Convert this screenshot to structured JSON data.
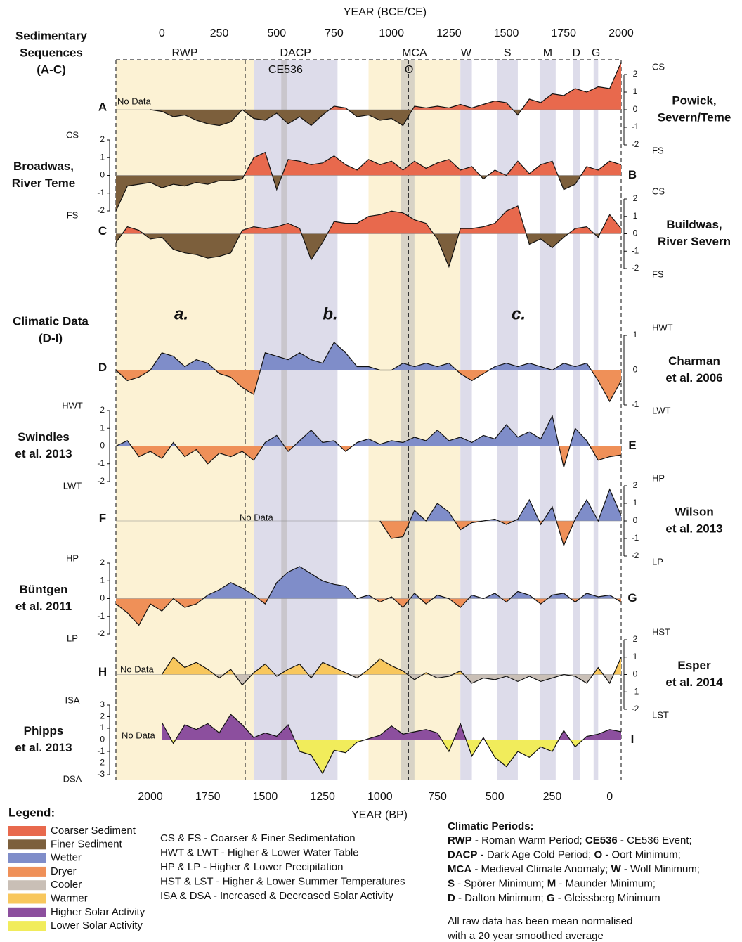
{
  "chart_data": {
    "type": "area",
    "xlabel_top": "YEAR (BCE/CE)",
    "xlim": [
      -200,
      2000
    ],
    "xticks": [
      0,
      250,
      500,
      750,
      1000,
      1250,
      1500,
      1750,
      2000
    ],
    "xlabel_bottom": "YEAR (BP)",
    "x2lim": [
      2150,
      -50
    ],
    "x2ticks": [
      2000,
      1750,
      1500,
      1250,
      1000,
      750,
      500,
      250,
      0
    ],
    "x": [
      -200,
      -150,
      -100,
      -50,
      0,
      50,
      100,
      150,
      200,
      250,
      300,
      350,
      400,
      450,
      500,
      550,
      600,
      650,
      700,
      750,
      800,
      850,
      900,
      950,
      1000,
      1050,
      1100,
      1150,
      1200,
      1250,
      1300,
      1350,
      1400,
      1450,
      1500,
      1550,
      1600,
      1650,
      1700,
      1750,
      1800,
      1850,
      1900,
      1950,
      2000
    ],
    "periods": [
      {
        "label": "RWP",
        "start": -200,
        "end": 400,
        "color": "#fcf2d4"
      },
      {
        "label": "DACP",
        "start": 400,
        "end": 765,
        "color": "#dddcea"
      },
      {
        "label": "CE536",
        "start": 520,
        "end": 545,
        "color": "#c9c6cc"
      },
      {
        "label": "MCA",
        "start": 900,
        "end": 1300,
        "color": "#fcf2d4"
      },
      {
        "label": "O",
        "start": 1040,
        "end": 1100,
        "color": "#d8d3c6"
      },
      {
        "label": "W",
        "start": 1300,
        "end": 1350,
        "color": "#dddcea"
      },
      {
        "label": "S",
        "start": 1460,
        "end": 1550,
        "color": "#dddcea"
      },
      {
        "label": "M",
        "start": 1645,
        "end": 1715,
        "color": "#dddcea"
      },
      {
        "label": "D",
        "start": 1790,
        "end": 1820,
        "color": "#dddcea"
      },
      {
        "label": "G",
        "start": 1880,
        "end": 1900,
        "color": "#dddcea"
      }
    ],
    "sections": [
      [
        "Sedimentary",
        "Sequences",
        "(A-C)"
      ],
      [
        "Climatic Data",
        "(D-I)"
      ]
    ],
    "phase_labels": [
      "a.",
      "b.",
      "c."
    ],
    "panels": [
      {
        "letter": "A",
        "name": [
          "Powick,",
          "Severn/Teme"
        ],
        "axis": "right",
        "label_top": "CS",
        "label_bottom": "FS",
        "no_data": "No Data",
        "ylim": [
          -2,
          2
        ],
        "yticks": [
          -2,
          -1,
          0,
          1,
          2
        ],
        "pos_color": "#e8694d",
        "neg_color": "#7c5f3c",
        "values": [
          null,
          null,
          null,
          0,
          -0.1,
          -0.4,
          -0.3,
          -0.6,
          -0.8,
          -0.9,
          -0.7,
          0,
          -0.5,
          -0.6,
          -0.2,
          -0.8,
          -0.4,
          -0.9,
          -0.3,
          0.2,
          0.1,
          -0.4,
          -0.3,
          -0.6,
          -0.5,
          -0.9,
          0.2,
          0.1,
          0.2,
          0.1,
          0.3,
          0.1,
          0.3,
          0.5,
          0.4,
          -0.3,
          0.6,
          0.4,
          0.9,
          0.8,
          1.2,
          1.0,
          1.3,
          1.2,
          2.7
        ]
      },
      {
        "letter": "B",
        "name": [
          "Broadwas,",
          "River Teme"
        ],
        "axis": "left",
        "label_top": "CS",
        "label_bottom": "FS",
        "ylim": [
          -2,
          2
        ],
        "yticks": [
          -2,
          -1,
          0,
          1,
          2
        ],
        "pos_color": "#e8694d",
        "neg_color": "#7c5f3c",
        "values": [
          -2.0,
          -0.6,
          -0.5,
          -0.4,
          -0.7,
          -0.5,
          -0.6,
          -0.4,
          -0.5,
          -0.3,
          -0.3,
          -0.2,
          1.0,
          1.3,
          -0.8,
          0.9,
          0.8,
          0.6,
          0.7,
          1.1,
          0.6,
          0.3,
          0.9,
          0.6,
          0.8,
          0.3,
          0.8,
          0.4,
          0.7,
          0.9,
          0.3,
          0.5,
          -0.2,
          0.3,
          0.0,
          0.8,
          0.1,
          0.6,
          0.8,
          -0.8,
          -0.5,
          0.5,
          0.3,
          0.8,
          0.6
        ]
      },
      {
        "letter": "C",
        "name": [
          "Buildwas,",
          "River Severn"
        ],
        "axis": "right",
        "label_top": "CS",
        "label_bottom": "FS",
        "ylim": [
          -2,
          2
        ],
        "yticks": [
          -2,
          -1,
          0,
          1,
          2
        ],
        "pos_color": "#e8694d",
        "neg_color": "#7c5f3c",
        "values": [
          -0.5,
          0.4,
          0.2,
          -0.3,
          -0.2,
          -0.9,
          -1.1,
          -1.2,
          -1.4,
          -1.3,
          -1.1,
          0.2,
          0.4,
          0.3,
          0.4,
          0.6,
          0.3,
          -1.5,
          -0.5,
          0.7,
          0.6,
          0.6,
          1.0,
          1.1,
          1.3,
          1.2,
          0.8,
          0.6,
          -0.3,
          -1.9,
          0.3,
          0.3,
          0.4,
          0.6,
          1.3,
          1.6,
          -0.6,
          -0.3,
          -0.8,
          -0.2,
          0.3,
          0.4,
          -0.2,
          1.1,
          0.3
        ]
      },
      {
        "letter": "D",
        "name": [
          "Charman",
          "et al. 2006"
        ],
        "axis": "right",
        "label_top": "HWT",
        "label_bottom": "LWT",
        "ylim": [
          -1,
          1
        ],
        "yticks": [
          -1,
          0,
          1
        ],
        "pos_color": "#7f8dc9",
        "neg_color": "#ef9058",
        "values": [
          0.0,
          -0.3,
          -0.2,
          0.0,
          0.5,
          0.4,
          0.1,
          0.3,
          0.2,
          -0.1,
          -0.2,
          -0.5,
          -0.7,
          0.5,
          0.4,
          0.3,
          0.5,
          0.3,
          0.2,
          0.8,
          0.5,
          0.1,
          0.1,
          0.0,
          0.0,
          0.2,
          0.1,
          0.2,
          0.1,
          0.2,
          -0.1,
          -0.3,
          -0.1,
          0.1,
          0.2,
          0.1,
          0.2,
          0.1,
          0.0,
          0.2,
          0.1,
          0.2,
          -0.3,
          -0.9,
          -0.3
        ]
      },
      {
        "letter": "E",
        "name": [
          "Swindles",
          "et al. 2013"
        ],
        "axis": "left",
        "label_top": "HWT",
        "label_bottom": "LWT",
        "ylim": [
          -2,
          2
        ],
        "yticks": [
          -2,
          -1,
          0,
          1,
          2
        ],
        "pos_color": "#7f8dc9",
        "neg_color": "#ef9058",
        "values": [
          0,
          0.3,
          -0.6,
          -0.3,
          -0.7,
          0.2,
          -0.6,
          -0.2,
          -1.0,
          -0.4,
          -0.6,
          -0.3,
          -0.8,
          0.2,
          0.6,
          -0.3,
          0.3,
          0.9,
          0.2,
          0.3,
          -0.3,
          0.2,
          0.4,
          0.1,
          0.3,
          0.2,
          0.5,
          0.3,
          0.9,
          0.3,
          0.5,
          0.2,
          0.6,
          0.4,
          1.2,
          0.5,
          0.8,
          0.4,
          1.7,
          -1.2,
          1.0,
          0.3,
          -0.8,
          -0.6,
          -0.5
        ]
      },
      {
        "letter": "F",
        "name": [
          "Wilson",
          "et al. 2013"
        ],
        "axis": "right",
        "label_top": "HP",
        "label_bottom": "LP",
        "no_data": "No Data",
        "ylim": [
          -2,
          2
        ],
        "yticks": [
          -2,
          -1,
          0,
          1,
          2
        ],
        "pos_color": "#7f8dc9",
        "neg_color": "#ef9058",
        "values": [
          null,
          null,
          null,
          null,
          null,
          null,
          null,
          null,
          null,
          null,
          null,
          null,
          null,
          null,
          null,
          null,
          null,
          null,
          null,
          null,
          null,
          null,
          null,
          0.0,
          -1.0,
          -0.9,
          0.6,
          0.0,
          1.0,
          0.5,
          -0.5,
          -0.1,
          0.0,
          0.1,
          -0.2,
          0.1,
          1.2,
          -0.2,
          0.8,
          -1.4,
          0.1,
          1.2,
          0.0,
          1.8,
          0.3
        ]
      },
      {
        "letter": "G",
        "name": [
          "Büntgen",
          "et al. 2011"
        ],
        "axis": "left",
        "label_top": "HP",
        "label_bottom": "LP",
        "ylim": [
          -2,
          2
        ],
        "yticks": [
          -2,
          -1,
          0,
          1,
          2
        ],
        "pos_color": "#7f8dc9",
        "neg_color": "#ef9058",
        "values": [
          -0.3,
          -0.8,
          -1.5,
          -0.3,
          -0.7,
          0.0,
          -0.5,
          -0.3,
          0.2,
          0.5,
          0.9,
          0.6,
          0.2,
          -0.3,
          0.9,
          1.5,
          1.8,
          1.4,
          1.0,
          0.8,
          0.7,
          0.0,
          0.2,
          -0.2,
          0.1,
          -0.5,
          0.3,
          -0.3,
          0.2,
          0.0,
          -0.5,
          0.2,
          0.0,
          0.3,
          -0.2,
          0.4,
          0.2,
          -0.3,
          0.2,
          0.3,
          -0.2,
          0.3,
          0.1,
          0.2,
          -0.2
        ]
      },
      {
        "letter": "H",
        "name": [
          "Esper",
          "et al. 2014"
        ],
        "axis": "right",
        "label_top": "HST",
        "label_bottom": "LST",
        "no_data": "No Data",
        "ylim": [
          -2,
          2
        ],
        "yticks": [
          -2,
          -1,
          0,
          1,
          2
        ],
        "pos_color": "#f8c75d",
        "neg_color": "#c9bfb6",
        "values": [
          null,
          null,
          null,
          null,
          0.0,
          1.0,
          0.4,
          0.7,
          0.3,
          -0.2,
          0.3,
          -0.6,
          0.1,
          0.6,
          -0.1,
          0.3,
          0.6,
          -0.2,
          0.7,
          0.4,
          0.1,
          -0.2,
          0.3,
          0.9,
          0.5,
          0.2,
          -0.3,
          0.1,
          -0.2,
          -0.1,
          0.2,
          -0.5,
          -0.2,
          -0.3,
          -0.1,
          -0.4,
          -0.1,
          -0.4,
          -0.2,
          0.0,
          -0.1,
          -0.5,
          0.4,
          -0.5,
          1.0
        ]
      },
      {
        "letter": "I",
        "name": [
          "Phipps",
          "et al. 2013"
        ],
        "axis": "left",
        "label_top": "ISA",
        "label_bottom": "DSA",
        "no_data": "No Data",
        "ylim": [
          -3,
          3
        ],
        "yticks": [
          -3,
          -2,
          -1,
          0,
          1,
          2,
          3
        ],
        "pos_color": "#8c4f9e",
        "neg_color": "#f1ec5b",
        "values": [
          null,
          null,
          null,
          null,
          1.5,
          -0.3,
          1.3,
          0.9,
          1.4,
          0.6,
          2.2,
          1.3,
          0.2,
          0.6,
          0.3,
          1.3,
          -1.0,
          -1.3,
          -2.9,
          -0.9,
          -1.1,
          -0.2,
          0.1,
          0.4,
          1.2,
          0.5,
          0.7,
          0.9,
          0.6,
          -1.0,
          1.4,
          -1.4,
          0.2,
          -1.5,
          -2.3,
          -1.0,
          -1.5,
          -0.6,
          -1.0,
          0.8,
          -0.6,
          0.3,
          0.5,
          0.9,
          0.7
        ]
      }
    ]
  },
  "legend": {
    "title": "Legend:",
    "items": [
      {
        "label": "Coarser Sediment",
        "color": "#e8694d"
      },
      {
        "label": "Finer Sediment",
        "color": "#7c5f3c"
      },
      {
        "label": "Wetter",
        "color": "#7f8dc9"
      },
      {
        "label": "Dryer",
        "color": "#ef9058"
      },
      {
        "label": "Cooler",
        "color": "#c9bfb6"
      },
      {
        "label": "Warmer",
        "color": "#f8c75d"
      },
      {
        "label": "Higher Solar Activity",
        "color": "#8c4f9e"
      },
      {
        "label": "Lower Solar Activity",
        "color": "#f1ec5b"
      }
    ]
  },
  "abbreviations": [
    "CS & FS - Coarser & Finer Sedimentation",
    "HWT & LWT - Higher & Lower Water Table",
    "HP & LP - Higher & Lower Precipitation",
    "HST & LST - Higher & Lower Summer Temperatures",
    "ISA & DSA - Increased & Decreased Solar Activity"
  ],
  "climatic_periods": {
    "title": "Climatic Periods:",
    "lines": [
      [
        {
          "b": "RWP",
          "t": " - Roman Warm Period; "
        },
        {
          "b": "CE536",
          "t": " - CE536 Event;"
        }
      ],
      [
        {
          "b": "DACP",
          "t": " - Dark Age Cold Period; "
        },
        {
          "b": "O",
          "t": " - Oort Minimum;"
        }
      ],
      [
        {
          "b": "MCA",
          "t": " - Medieval Climate Anomaly; "
        },
        {
          "b": "W",
          "t": " - Wolf Minimum;"
        }
      ],
      [
        {
          "b": "S",
          "t": " - Spörer Minimum; "
        },
        {
          "b": "M",
          "t": " - Maunder Minimum;"
        }
      ],
      [
        {
          "b": "D",
          "t": " - Dalton Minimum; "
        },
        {
          "b": "G",
          "t": " - Gleissberg Minimum"
        }
      ]
    ]
  },
  "note": [
    "All raw data has been mean normalised",
    "with a 20 year smoothed average"
  ]
}
